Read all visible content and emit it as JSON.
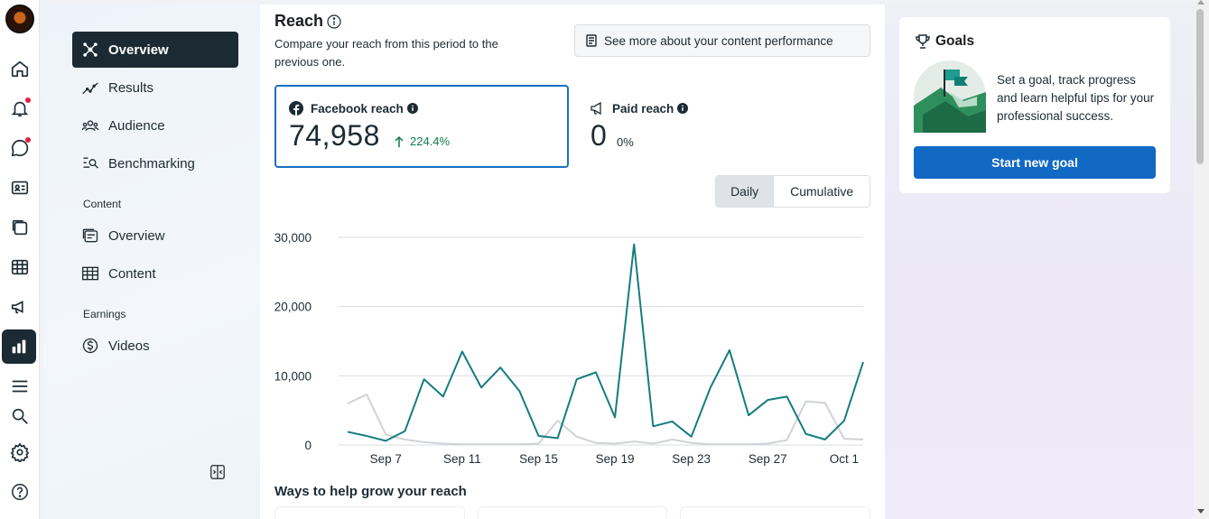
{
  "rail": {
    "items": [
      "home-icon",
      "notifications-icon",
      "messages-icon",
      "contacts-icon",
      "content-icon",
      "planner-icon",
      "ads-icon",
      "insights-icon",
      "menu-icon",
      "search-icon",
      "settings-icon",
      "help-icon"
    ]
  },
  "nav": {
    "items": [
      {
        "label": "Overview",
        "icon": "overview-icon"
      },
      {
        "label": "Results",
        "icon": "results-icon"
      },
      {
        "label": "Audience",
        "icon": "audience-icon"
      },
      {
        "label": "Benchmarking",
        "icon": "benchmarking-icon"
      }
    ],
    "content_section": "Content",
    "content_items": [
      {
        "label": "Overview",
        "icon": "content-overview-icon"
      },
      {
        "label": "Content",
        "icon": "content-table-icon"
      }
    ],
    "earnings_section": "Earnings",
    "earnings_items": [
      {
        "label": "Videos",
        "icon": "dollar-icon"
      }
    ]
  },
  "reach": {
    "title": "Reach",
    "subtitle": "Compare your reach from this period to the previous one.",
    "see_more": "See more about your content performance",
    "facebook_label": "Facebook reach",
    "facebook_value": "74,958",
    "facebook_change": "224.4%",
    "paid_label": "Paid reach",
    "paid_value": "0",
    "paid_change": "0%",
    "toggle_daily": "Daily",
    "toggle_cumulative": "Cumulative",
    "ways_title": "Ways to help grow your reach"
  },
  "goals": {
    "title": "Goals",
    "text": "Set a goal, track progress and learn helpful tips for your professional success.",
    "button": "Start new goal"
  },
  "chart_data": {
    "type": "line",
    "x_tick_labels": [
      "Sep 7",
      "Sep 11",
      "Sep 15",
      "Sep 19",
      "Sep 23",
      "Sep 27",
      "Oct 1"
    ],
    "y_tick_labels": [
      "0",
      "10,000",
      "20,000",
      "30,000"
    ],
    "ylim": [
      0,
      30000
    ],
    "x": [
      "Sep 5",
      "Sep 6",
      "Sep 7",
      "Sep 8",
      "Sep 9",
      "Sep 10",
      "Sep 11",
      "Sep 12",
      "Sep 13",
      "Sep 14",
      "Sep 15",
      "Sep 16",
      "Sep 17",
      "Sep 18",
      "Sep 19",
      "Sep 20",
      "Sep 21",
      "Sep 22",
      "Sep 23",
      "Sep 24",
      "Sep 25",
      "Sep 26",
      "Sep 27",
      "Sep 28",
      "Sep 29",
      "Sep 30",
      "Oct 1",
      "Oct 2"
    ],
    "series": [
      {
        "color": "#167c80",
        "values": [
          1900,
          1300,
          600,
          2000,
          9500,
          7000,
          13500,
          8300,
          11200,
          7800,
          1300,
          1000,
          9500,
          10500,
          4000,
          29000,
          2700,
          3400,
          1200,
          8300,
          13700,
          4300,
          6500,
          7000,
          1600,
          800,
          3500,
          12000
        ]
      },
      {
        "color": "#d0d3d6",
        "values": [
          6000,
          7300,
          1500,
          800,
          400,
          200,
          100,
          100,
          100,
          100,
          200,
          3500,
          1200,
          300,
          200,
          500,
          200,
          800,
          300,
          100,
          100,
          100,
          200,
          700,
          6300,
          6100,
          900,
          800
        ]
      }
    ],
    "grid": true,
    "legend": "none"
  },
  "colors": {
    "accent": "#1169c3",
    "line_current": "#167c80",
    "line_previous": "#d0d3d6",
    "nav_active": "#1c2b33"
  }
}
